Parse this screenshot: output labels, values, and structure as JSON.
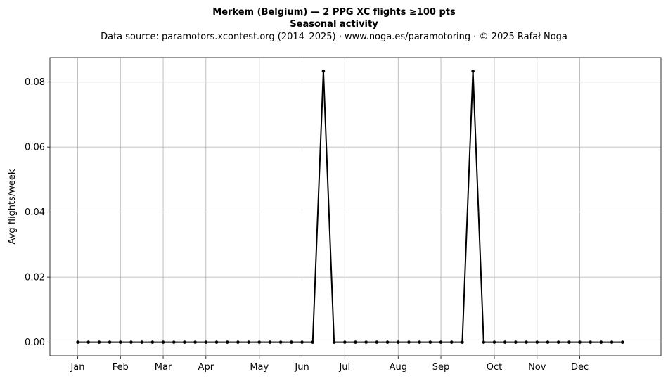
{
  "chart_data": {
    "type": "line",
    "title": "Merkem (Belgium)  —  2 PPG XC flights ≥100 pts",
    "subtitle": "Seasonal activity",
    "source": "Data source: paramotors.xcontest.org (2014–2025)  ·  www.noga.es/paramotoring  ·  © 2025 Rafał Noga",
    "xlabel": "",
    "ylabel": "Avg flights/week",
    "x": [
      1,
      2,
      3,
      4,
      5,
      6,
      7,
      8,
      9,
      10,
      11,
      12,
      13,
      14,
      15,
      16,
      17,
      18,
      19,
      20,
      21,
      22,
      23,
      24,
      25,
      26,
      27,
      28,
      29,
      30,
      31,
      32,
      33,
      34,
      35,
      36,
      37,
      38,
      39,
      40,
      41,
      42,
      43,
      44,
      45,
      46,
      47,
      48,
      49,
      50,
      51,
      52
    ],
    "series": [
      {
        "color": "#000000",
        "values": [
          0,
          0,
          0,
          0,
          0,
          0,
          0,
          0,
          0,
          0,
          0,
          0,
          0,
          0,
          0,
          0,
          0,
          0,
          0,
          0,
          0,
          0,
          0,
          0.0833,
          0,
          0,
          0,
          0,
          0,
          0,
          0,
          0,
          0,
          0,
          0,
          0,
          0,
          0.0833,
          0,
          0,
          0,
          0,
          0,
          0,
          0,
          0,
          0,
          0,
          0,
          0,
          0,
          0
        ]
      }
    ],
    "xticks": [
      {
        "label": "Jan",
        "week": 1
      },
      {
        "label": "Feb",
        "week": 5
      },
      {
        "label": "Mar",
        "week": 9
      },
      {
        "label": "Apr",
        "week": 13
      },
      {
        "label": "May",
        "week": 18
      },
      {
        "label": "Jun",
        "week": 22
      },
      {
        "label": "Jul",
        "week": 26
      },
      {
        "label": "Aug",
        "week": 31
      },
      {
        "label": "Sep",
        "week": 35
      },
      {
        "label": "Oct",
        "week": 40
      },
      {
        "label": "Nov",
        "week": 44
      },
      {
        "label": "Dec",
        "week": 48
      }
    ],
    "yticks": [
      "0.00",
      "0.02",
      "0.04",
      "0.06",
      "0.08"
    ],
    "xlim": [
      -1.6,
      55.6
    ],
    "ylim": [
      -0.0042,
      0.0875
    ],
    "grid": true
  }
}
